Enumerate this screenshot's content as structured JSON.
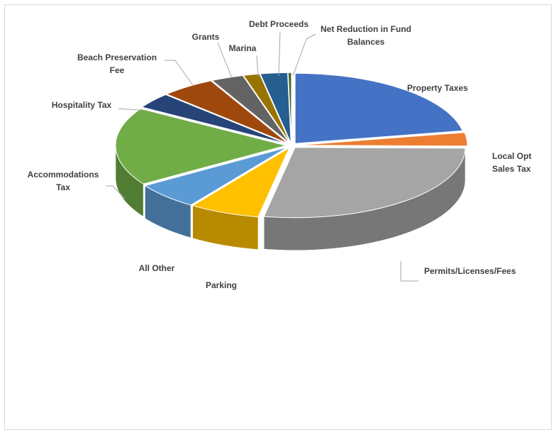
{
  "chart_data": {
    "type": "pie",
    "style": "3d-exploded",
    "title": "",
    "legend": "none",
    "categories": [
      "Property Taxes",
      "Local Opt Sales Tax",
      "Permits/Licenses/Fees",
      "Parking",
      "All Other",
      "Accommodations Tax",
      "Hospitality Tax",
      "Beach Preservation Fee",
      "Grants",
      "Marina",
      "Debt Proceeds",
      "Net Reduction in Fund Balances"
    ],
    "values": [
      21.5,
      3.0,
      27.0,
      6.5,
      6.0,
      17.5,
      3.5,
      5.0,
      3.0,
      1.5,
      2.5,
      0.3
    ],
    "unit": "percent of total (estimated)",
    "colors": [
      "#4472C4",
      "#ED7D31",
      "#A5A5A5",
      "#FFC000",
      "#5B9BD5",
      "#70AD47",
      "#264478",
      "#9E480E",
      "#636363",
      "#997300",
      "#255E91",
      "#43682B"
    ]
  }
}
